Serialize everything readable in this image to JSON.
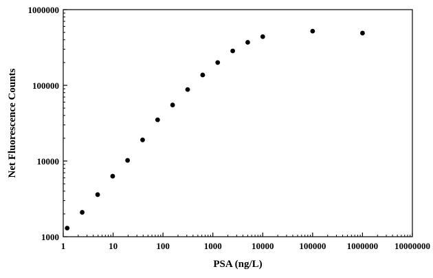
{
  "chart_data": {
    "type": "scatter",
    "title": "",
    "xlabel": "PSA (ng/L)",
    "ylabel": "Net Fluorescence Counts",
    "x_scale": "log",
    "y_scale": "log",
    "xlim": [
      1,
      10000000
    ],
    "ylim": [
      1000,
      1000000
    ],
    "x_ticks": [
      "1",
      "10",
      "100",
      "1000",
      "10000",
      "100000",
      "1000000",
      "10000000"
    ],
    "y_ticks": [
      "1000",
      "10000",
      "100000",
      "1000000"
    ],
    "grid": false,
    "legend": "none",
    "marker_color": "#000000",
    "series": [
      {
        "x": [
          1.2,
          2.4,
          4.9,
          9.8,
          19.5,
          39,
          78,
          156,
          312,
          625,
          1250,
          2500,
          5000,
          10000,
          100000,
          1000000
        ],
        "y": [
          1300,
          2100,
          3600,
          6300,
          10200,
          19000,
          35000,
          55000,
          88000,
          137000,
          200000,
          285000,
          370000,
          440000,
          520000,
          490000
        ]
      }
    ]
  }
}
